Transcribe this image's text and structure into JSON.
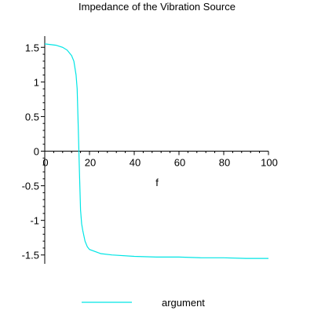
{
  "chart_data": {
    "type": "line",
    "title": "Impedance of the Vibration Source",
    "xlabel": "f",
    "ylabel": "",
    "xlim": [
      0,
      100
    ],
    "ylim": [
      -1.571,
      1.571
    ],
    "x_ticks": [
      {
        "value": 0,
        "label": "0"
      },
      {
        "value": 20,
        "label": "20"
      },
      {
        "value": 40,
        "label": "40"
      },
      {
        "value": 60,
        "label": "60"
      },
      {
        "value": 80,
        "label": "80"
      },
      {
        "value": 100,
        "label": "100"
      }
    ],
    "y_ticks": [
      {
        "value": 1.5,
        "label": "1.5"
      },
      {
        "value": 1,
        "label": "1"
      },
      {
        "value": 0.5,
        "label": "0.5"
      },
      {
        "value": 0,
        "label": "0"
      },
      {
        "value": -0.5,
        "label": "-0.5"
      },
      {
        "value": -1,
        "label": "-1"
      },
      {
        "value": -1.5,
        "label": "-1.5"
      }
    ],
    "grid": false,
    "legend_position": "bottom",
    "series": [
      {
        "name": "argument",
        "color": "#00e5e5",
        "points": [
          [
            0,
            1.55
          ],
          [
            5,
            1.53
          ],
          [
            8,
            1.5
          ],
          [
            10,
            1.46
          ],
          [
            12,
            1.38
          ],
          [
            13,
            1.3
          ],
          [
            14,
            1.1
          ],
          [
            14.5,
            0.9
          ],
          [
            15,
            0.3
          ],
          [
            15.5,
            -0.3
          ],
          [
            16,
            -0.85
          ],
          [
            16.5,
            -1.05
          ],
          [
            17,
            -1.15
          ],
          [
            18,
            -1.3
          ],
          [
            19,
            -1.38
          ],
          [
            20,
            -1.42
          ],
          [
            25,
            -1.48
          ],
          [
            30,
            -1.5
          ],
          [
            40,
            -1.52
          ],
          [
            50,
            -1.53
          ],
          [
            60,
            -1.53
          ],
          [
            70,
            -1.54
          ],
          [
            80,
            -1.54
          ],
          [
            90,
            -1.55
          ],
          [
            100,
            -1.55
          ]
        ]
      }
    ]
  }
}
